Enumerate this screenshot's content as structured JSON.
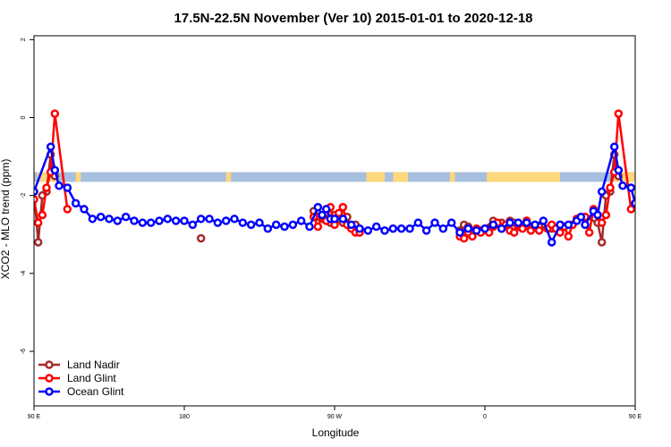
{
  "chart_data": {
    "type": "line",
    "title": "17.5N-22.5N November (Ver 10)   2015-01-01 to 2020-12-18",
    "xlabel": "Longitude",
    "ylabel": "XCO2 - MLO trend (ppm)",
    "xlim": [
      90,
      450
    ],
    "ylim": [
      -7.4,
      2.1
    ],
    "x_ticks": [
      {
        "value": 90,
        "label": "90 E"
      },
      {
        "value": 180,
        "label": "180"
      },
      {
        "value": 270,
        "label": "90 W"
      },
      {
        "value": 360,
        "label": "0"
      },
      {
        "value": 450,
        "label": "90 E"
      },
      {
        "value": 540,
        "label": "180"
      }
    ],
    "y_ticks": [
      {
        "value": 2,
        "label": "2"
      },
      {
        "value": 0,
        "label": "0"
      },
      {
        "value": -2,
        "label": "-2"
      },
      {
        "value": -4,
        "label": "-4"
      },
      {
        "value": -6,
        "label": "-6"
      }
    ],
    "grid": false,
    "legend_position": "bottom-left",
    "land_sea_band": {
      "y_range": [
        -1.65,
        -1.4
      ],
      "ocean_color": "#a7bfdf",
      "land_color": "#fdd77c",
      "land_segments": [
        [
          92,
          104
        ],
        [
          115,
          118
        ],
        [
          205,
          208
        ],
        [
          289,
          300
        ],
        [
          305,
          314
        ],
        [
          339,
          342
        ],
        [
          361,
          405
        ],
        [
          437,
          458
        ]
      ]
    },
    "series": [
      {
        "name": "Land Nadir",
        "color": "#a52a2a",
        "points": [
          [
            90,
            -1.9
          ],
          [
            92.5,
            -3.2
          ],
          [
            95,
            -2.0
          ],
          [
            97.5,
            -1.9
          ],
          [
            100,
            -0.95
          ],
          [
            102.5,
            -1.5
          ],
          [
            190,
            -3.1
          ],
          [
            257.5,
            -2.4
          ],
          [
            260,
            -2.55
          ],
          [
            262.5,
            -2.6
          ],
          [
            265,
            -2.6
          ],
          [
            267.5,
            -2.7
          ],
          [
            270,
            -2.5
          ],
          [
            272.5,
            -2.6
          ],
          [
            275,
            -2.7
          ],
          [
            277.5,
            -2.55
          ],
          [
            280,
            -2.8
          ],
          [
            282.5,
            -2.75
          ],
          [
            345,
            -2.9
          ],
          [
            347.5,
            -2.75
          ],
          [
            350,
            -2.8
          ],
          [
            357.5,
            -2.9
          ],
          [
            365,
            -2.65
          ],
          [
            370,
            -2.7
          ],
          [
            375,
            -2.65
          ],
          [
            377.5,
            -2.7
          ],
          [
            380,
            -2.8
          ],
          [
            385,
            -2.7
          ],
          [
            387.5,
            -2.85
          ],
          [
            392.5,
            -2.8
          ],
          [
            400,
            -2.85
          ],
          [
            405,
            -2.75
          ],
          [
            407.5,
            -2.8
          ],
          [
            412.5,
            -2.75
          ],
          [
            415,
            -2.6
          ],
          [
            420,
            -2.55
          ],
          [
            427.5,
            -2.7
          ],
          [
            430,
            -3.2
          ],
          [
            432.5,
            -2.0
          ],
          [
            435,
            -1.9
          ],
          [
            437.5,
            -0.95
          ],
          [
            440,
            -1.5
          ]
        ]
      },
      {
        "name": "Land Glint",
        "color": "#ff0000",
        "points": [
          [
            90,
            -2.1
          ],
          [
            92.5,
            -2.7
          ],
          [
            95,
            -2.5
          ],
          [
            97.5,
            -1.8
          ],
          [
            100,
            -1.4
          ],
          [
            102.5,
            0.1
          ],
          [
            110,
            -2.35
          ],
          [
            257.5,
            -2.55
          ],
          [
            260,
            -2.8
          ],
          [
            262.5,
            -2.55
          ],
          [
            265,
            -2.65
          ],
          [
            267.5,
            -2.3
          ],
          [
            270,
            -2.75
          ],
          [
            272.5,
            -2.45
          ],
          [
            275,
            -2.3
          ],
          [
            277.5,
            -2.75
          ],
          [
            280,
            -2.85
          ],
          [
            282.5,
            -2.95
          ],
          [
            285,
            -2.95
          ],
          [
            345,
            -3.05
          ],
          [
            347.5,
            -3.1
          ],
          [
            350,
            -2.95
          ],
          [
            352.5,
            -3.05
          ],
          [
            355,
            -2.85
          ],
          [
            357.5,
            -2.95
          ],
          [
            360,
            -2.85
          ],
          [
            362.5,
            -2.95
          ],
          [
            365,
            -2.8
          ],
          [
            367.5,
            -2.7
          ],
          [
            370,
            -2.85
          ],
          [
            372.5,
            -2.75
          ],
          [
            375,
            -2.9
          ],
          [
            377.5,
            -2.95
          ],
          [
            380,
            -2.75
          ],
          [
            382.5,
            -2.85
          ],
          [
            385,
            -2.65
          ],
          [
            387.5,
            -2.9
          ],
          [
            390,
            -2.8
          ],
          [
            392.5,
            -2.9
          ],
          [
            397.5,
            -2.85
          ],
          [
            400,
            -2.75
          ],
          [
            402.5,
            -2.85
          ],
          [
            405,
            -2.95
          ],
          [
            407.5,
            -2.8
          ],
          [
            410,
            -3.05
          ],
          [
            412.5,
            -2.75
          ],
          [
            415,
            -2.6
          ],
          [
            417.5,
            -2.55
          ],
          [
            420,
            -2.55
          ],
          [
            422.5,
            -2.95
          ],
          [
            425,
            -2.35
          ],
          [
            427.5,
            -2.5
          ],
          [
            430,
            -2.7
          ],
          [
            432.5,
            -2.5
          ],
          [
            435,
            -1.8
          ],
          [
            437.5,
            -1.4
          ],
          [
            440,
            0.1
          ],
          [
            447.5,
            -2.35
          ]
        ]
      },
      {
        "name": "Ocean Glint",
        "color": "#0000ff",
        "points": [
          [
            90,
            -1.9
          ],
          [
            100,
            -0.75
          ],
          [
            102.5,
            -1.35
          ],
          [
            105,
            -1.75
          ],
          [
            110,
            -1.8
          ],
          [
            115,
            -2.2
          ],
          [
            120,
            -2.35
          ],
          [
            125,
            -2.6
          ],
          [
            130,
            -2.55
          ],
          [
            135,
            -2.6
          ],
          [
            140,
            -2.65
          ],
          [
            145,
            -2.55
          ],
          [
            150,
            -2.65
          ],
          [
            155,
            -2.7
          ],
          [
            160,
            -2.7
          ],
          [
            165,
            -2.65
          ],
          [
            170,
            -2.6
          ],
          [
            175,
            -2.65
          ],
          [
            180,
            -2.65
          ],
          [
            185,
            -2.75
          ],
          [
            190,
            -2.6
          ],
          [
            195,
            -2.6
          ],
          [
            200,
            -2.7
          ],
          [
            205,
            -2.65
          ],
          [
            210,
            -2.6
          ],
          [
            215,
            -2.7
          ],
          [
            220,
            -2.75
          ],
          [
            225,
            -2.7
          ],
          [
            230,
            -2.85
          ],
          [
            235,
            -2.75
          ],
          [
            240,
            -2.8
          ],
          [
            245,
            -2.75
          ],
          [
            250,
            -2.65
          ],
          [
            255,
            -2.8
          ],
          [
            260,
            -2.3
          ],
          [
            262.5,
            -2.5
          ],
          [
            265,
            -2.35
          ],
          [
            267.5,
            -2.6
          ],
          [
            270,
            -2.6
          ],
          [
            275,
            -2.6
          ],
          [
            280,
            -2.75
          ],
          [
            285,
            -2.85
          ],
          [
            290,
            -2.9
          ],
          [
            295,
            -2.8
          ],
          [
            300,
            -2.9
          ],
          [
            305,
            -2.85
          ],
          [
            310,
            -2.85
          ],
          [
            315,
            -2.85
          ],
          [
            320,
            -2.7
          ],
          [
            325,
            -2.9
          ],
          [
            330,
            -2.7
          ],
          [
            335,
            -2.85
          ],
          [
            340,
            -2.7
          ],
          [
            345,
            -2.95
          ],
          [
            350,
            -2.85
          ],
          [
            355,
            -2.9
          ],
          [
            360,
            -2.85
          ],
          [
            365,
            -2.75
          ],
          [
            370,
            -2.85
          ],
          [
            375,
            -2.7
          ],
          [
            380,
            -2.7
          ],
          [
            385,
            -2.7
          ],
          [
            390,
            -2.75
          ],
          [
            395,
            -2.65
          ],
          [
            400,
            -3.2
          ],
          [
            405,
            -2.75
          ],
          [
            410,
            -2.75
          ],
          [
            415,
            -2.65
          ],
          [
            417.5,
            -2.55
          ],
          [
            420,
            -2.75
          ],
          [
            425,
            -2.4
          ],
          [
            427.5,
            -2.5
          ],
          [
            430,
            -1.9
          ],
          [
            437.5,
            -0.75
          ],
          [
            440,
            -1.35
          ],
          [
            442.5,
            -1.75
          ],
          [
            447.5,
            -1.8
          ],
          [
            450,
            -2.2
          ],
          [
            455,
            -2.35
          ],
          [
            460,
            -2.45
          ],
          [
            465,
            -2.6
          ],
          [
            470,
            -2.55
          ],
          [
            475,
            -2.6
          ],
          [
            480,
            -2.6
          ],
          [
            485,
            -2.65
          ],
          [
            490,
            -2.6
          ],
          [
            495,
            -2.6
          ],
          [
            500,
            -2.65
          ]
        ]
      }
    ]
  }
}
